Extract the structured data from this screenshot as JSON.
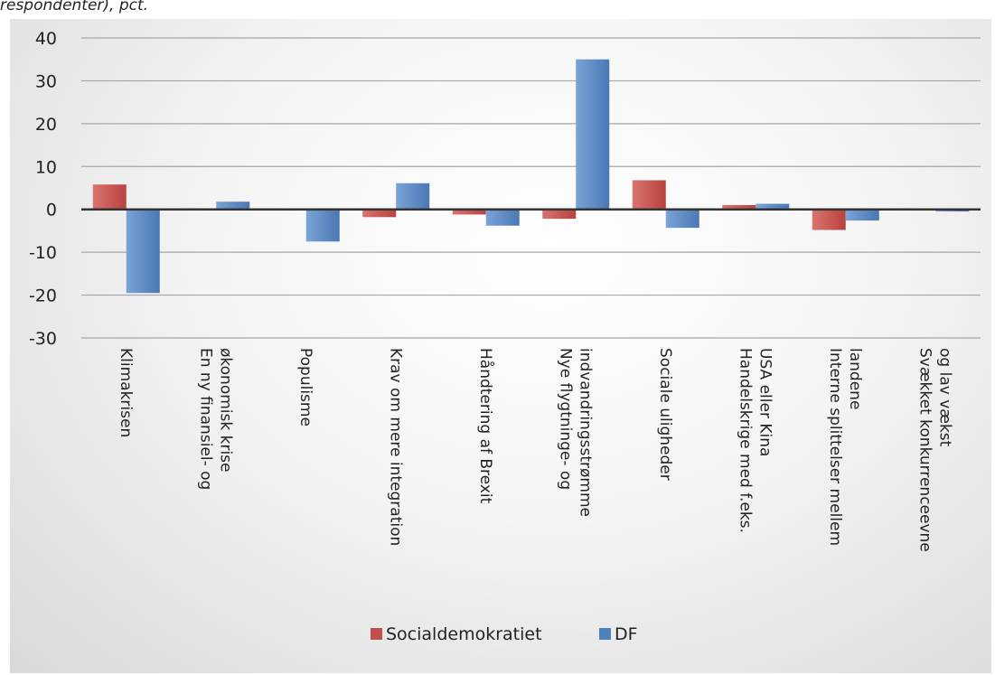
{
  "caption": "respondenter), pct.",
  "chart_data": {
    "type": "bar",
    "title": "",
    "xlabel": "",
    "ylabel": "",
    "ylim": [
      -30,
      40
    ],
    "yticks": [
      40,
      30,
      20,
      10,
      0,
      -10,
      -20,
      -30
    ],
    "grid": true,
    "legend_position": "bottom",
    "categories": [
      [
        "Klimakrisen"
      ],
      [
        "En ny finansiel- og",
        "økonomisk krise"
      ],
      [
        "Populisme"
      ],
      [
        "Krav om mere integration"
      ],
      [
        "Håndtering af Brexit"
      ],
      [
        "Nye flygtninge- og",
        "indvandringsstrømme"
      ],
      [
        "Sociale uligheder"
      ],
      [
        "Handelskrige med f.eks.",
        "USA eller Kina"
      ],
      [
        "Interne splittelser mellem",
        "landene"
      ],
      [
        "Svækket konkurrenceevne",
        "og lav vækst"
      ]
    ],
    "series": [
      {
        "name": "Socialdemokratiet",
        "color": "#c0504d",
        "values": [
          5.8,
          0,
          0,
          -1.8,
          -1.2,
          -2.2,
          6.8,
          1.0,
          -4.8,
          0
        ]
      },
      {
        "name": "DF",
        "color": "#4f81bd",
        "values": [
          -19.5,
          1.8,
          -7.5,
          6.1,
          -3.8,
          35,
          -4.3,
          1.3,
          -2.6,
          -0.5
        ]
      }
    ]
  }
}
